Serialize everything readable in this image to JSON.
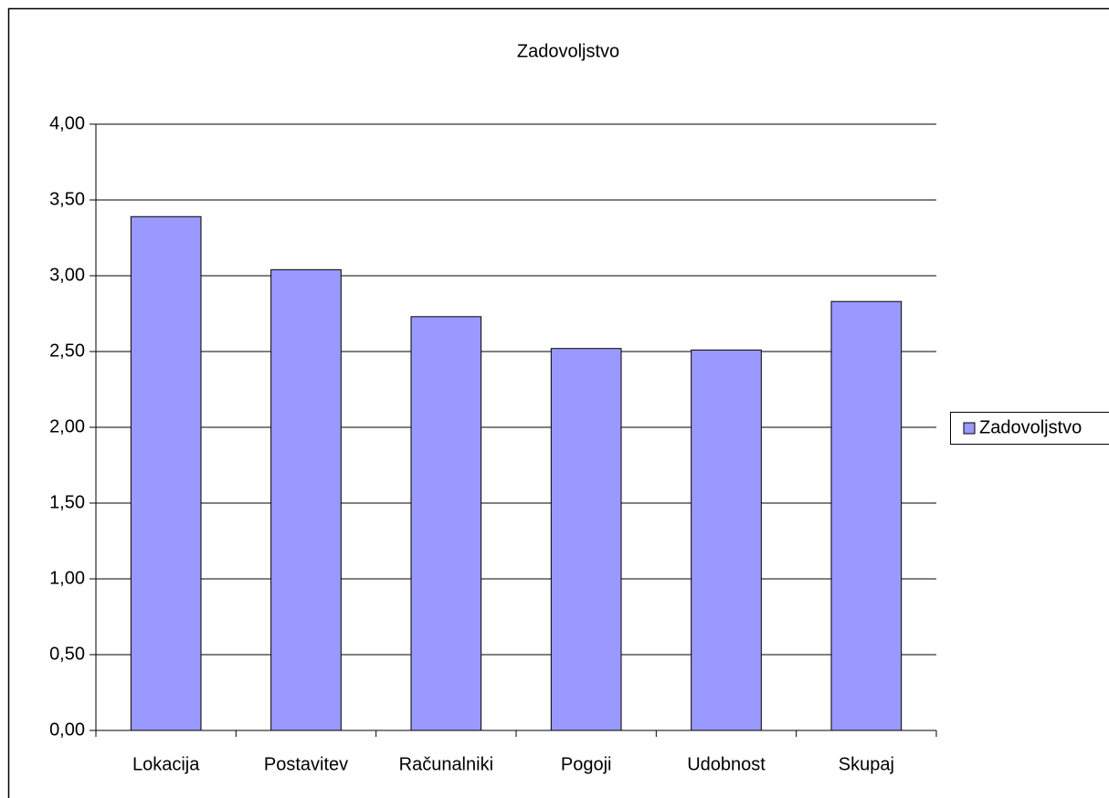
{
  "chart_data": {
    "type": "bar",
    "title": "Zadovoljstvo",
    "categories": [
      "Lokacija",
      "Postavitev",
      "Računalniki",
      "Pogoji",
      "Udobnost",
      "Skupaj"
    ],
    "series": [
      {
        "name": "Zadovoljstvo",
        "color": "#9999ff",
        "values": [
          3.39,
          3.04,
          2.73,
          2.52,
          2.51,
          2.83
        ]
      }
    ],
    "ylim": [
      0,
      4
    ],
    "yticks": [
      {
        "value": 0,
        "label": "0,00"
      },
      {
        "value": 0.5,
        "label": "0,50"
      },
      {
        "value": 1,
        "label": "1,00"
      },
      {
        "value": 1.5,
        "label": "1,50"
      },
      {
        "value": 2,
        "label": "2,00"
      },
      {
        "value": 2.5,
        "label": "2,50"
      },
      {
        "value": 3,
        "label": "3,00"
      },
      {
        "value": 3.5,
        "label": "3,50"
      },
      {
        "value": 4,
        "label": "4,00"
      }
    ],
    "grid": true,
    "legend": "right"
  }
}
